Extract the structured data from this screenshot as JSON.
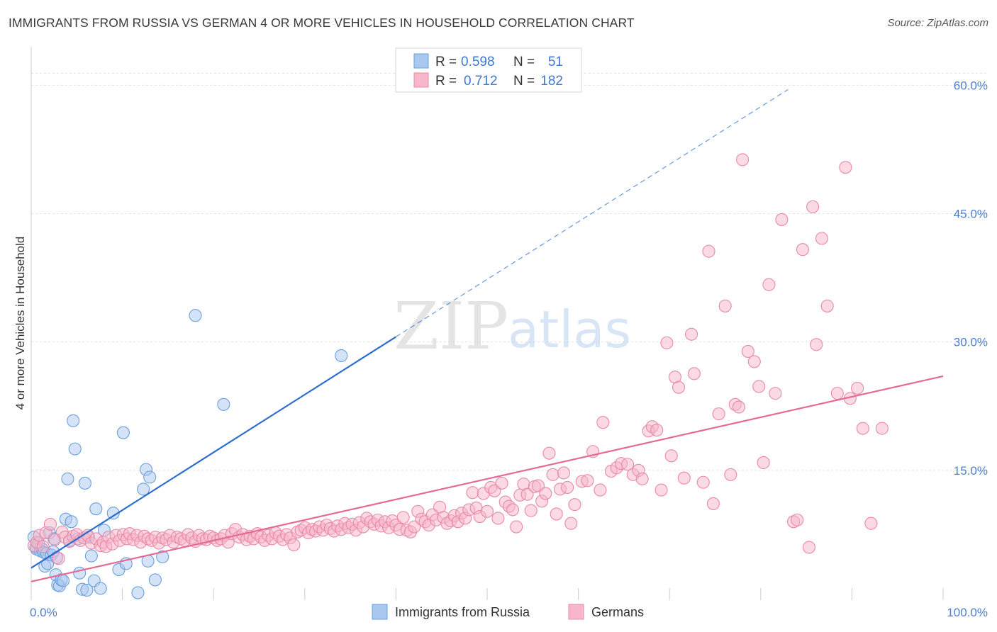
{
  "title": "IMMIGRANTS FROM RUSSIA VS GERMAN 4 OR MORE VEHICLES IN HOUSEHOLD CORRELATION CHART",
  "source": "Source: ZipAtlas.com",
  "watermark": {
    "zip": "ZIP",
    "atlas": "atlas"
  },
  "colors": {
    "russia_fill": "#a9c8f0",
    "russia_stroke": "#6a9fdc",
    "russia_line": "#2b6ccf",
    "german_fill": "#f7b6c9",
    "german_stroke": "#e889a8",
    "german_line": "#e56a95",
    "grid": "#e2e2e2",
    "tick_label": "#4a7fd1"
  },
  "legend": {
    "rows": [
      {
        "r_label": "R = ",
        "r_value": "0.598",
        "n_label": "N = ",
        "n_value": "51"
      },
      {
        "r_label": "R = ",
        "r_value": "0.712",
        "n_label": "N = ",
        "n_value": "182"
      }
    ]
  },
  "chart_data": {
    "type": "scatter",
    "xlabel": "",
    "ylabel": "4 or more Vehicles in Household",
    "xlim": [
      0,
      100
    ],
    "ylim": [
      0,
      64
    ],
    "x_tick_labels": [
      {
        "value": 0,
        "label": "0.0%"
      },
      {
        "value": 100,
        "label": "100.0%"
      }
    ],
    "y_ticks": [
      {
        "value": 15,
        "label": "15.0%"
      },
      {
        "value": 30,
        "label": "30.0%"
      },
      {
        "value": 45,
        "label": "45.0%"
      },
      {
        "value": 60,
        "label": "60.0%"
      }
    ],
    "grid": true,
    "legend_position": "top-center",
    "series": [
      {
        "name": "Immigrants from Russia",
        "r": 0.598,
        "n": 51,
        "trend": {
          "x0": 0,
          "y0": 3.6,
          "x1": 40,
          "y1": 30.6,
          "dashed_to_x": 83,
          "dashed_to_y": 59.5
        },
        "points": [
          [
            0.3,
            7.2
          ],
          [
            0.5,
            6.0
          ],
          [
            0.6,
            5.8
          ],
          [
            0.8,
            6.5
          ],
          [
            1.0,
            5.6
          ],
          [
            1.2,
            5.8
          ],
          [
            1.4,
            5.4
          ],
          [
            1.5,
            3.8
          ],
          [
            1.7,
            5.3
          ],
          [
            1.8,
            4.1
          ],
          [
            2.0,
            7.7
          ],
          [
            2.2,
            5.1
          ],
          [
            2.4,
            5.5
          ],
          [
            2.5,
            7.0
          ],
          [
            2.7,
            2.8
          ],
          [
            2.8,
            4.8
          ],
          [
            2.9,
            1.6
          ],
          [
            3.1,
            1.5
          ],
          [
            3.3,
            2.2
          ],
          [
            3.5,
            2.1
          ],
          [
            3.8,
            9.3
          ],
          [
            4.0,
            14.0
          ],
          [
            4.2,
            6.8
          ],
          [
            4.4,
            9.0
          ],
          [
            4.6,
            20.8
          ],
          [
            4.8,
            17.5
          ],
          [
            5.1,
            7.0
          ],
          [
            5.3,
            3.0
          ],
          [
            5.6,
            1.1
          ],
          [
            5.9,
            13.5
          ],
          [
            6.1,
            1.0
          ],
          [
            6.3,
            7.2
          ],
          [
            6.6,
            5.0
          ],
          [
            6.9,
            2.1
          ],
          [
            7.1,
            10.5
          ],
          [
            7.6,
            1.2
          ],
          [
            8.0,
            8.0
          ],
          [
            9.0,
            10.0
          ],
          [
            9.6,
            3.4
          ],
          [
            10.1,
            19.4
          ],
          [
            10.4,
            4.1
          ],
          [
            11.7,
            0.7
          ],
          [
            12.3,
            12.8
          ],
          [
            12.6,
            15.1
          ],
          [
            12.8,
            4.4
          ],
          [
            13.0,
            14.2
          ],
          [
            13.6,
            2.2
          ],
          [
            14.4,
            4.9
          ],
          [
            18.0,
            33.1
          ],
          [
            21.1,
            22.7
          ],
          [
            34.0,
            28.4
          ]
        ]
      },
      {
        "name": "Germans",
        "r": 0.712,
        "n": 182,
        "trend": {
          "x0": 0,
          "y0": 2.0,
          "x1": 100,
          "y1": 26.0
        },
        "points": [
          [
            0.3,
            6.2
          ],
          [
            0.6,
            6.6
          ],
          [
            0.9,
            7.4
          ],
          [
            1.3,
            6.1
          ],
          [
            1.6,
            7.7
          ],
          [
            2.1,
            8.7
          ],
          [
            2.6,
            6.9
          ],
          [
            3.0,
            4.7
          ],
          [
            3.4,
            7.8
          ],
          [
            3.7,
            7.2
          ],
          [
            4.2,
            6.7
          ],
          [
            4.6,
            7.3
          ],
          [
            5.0,
            7.5
          ],
          [
            5.4,
            6.8
          ],
          [
            5.8,
            7.1
          ],
          [
            6.2,
            7.4
          ],
          [
            6.6,
            6.5
          ],
          [
            7.1,
            7.0
          ],
          [
            7.6,
            6.2
          ],
          [
            7.9,
            6.6
          ],
          [
            8.2,
            6.1
          ],
          [
            8.5,
            7.2
          ],
          [
            8.9,
            6.4
          ],
          [
            9.3,
            7.4
          ],
          [
            9.7,
            6.8
          ],
          [
            10.1,
            7.5
          ],
          [
            10.5,
            7.0
          ],
          [
            10.8,
            7.6
          ],
          [
            11.2,
            6.9
          ],
          [
            11.6,
            7.4
          ],
          [
            12.0,
            6.6
          ],
          [
            12.4,
            7.3
          ],
          [
            12.8,
            7.0
          ],
          [
            13.2,
            6.8
          ],
          [
            13.6,
            7.2
          ],
          [
            14.0,
            6.5
          ],
          [
            14.4,
            7.1
          ],
          [
            14.8,
            6.9
          ],
          [
            15.2,
            7.4
          ],
          [
            15.6,
            6.6
          ],
          [
            16.0,
            7.2
          ],
          [
            16.4,
            7.0
          ],
          [
            16.8,
            6.8
          ],
          [
            17.2,
            7.5
          ],
          [
            17.6,
            7.1
          ],
          [
            18.0,
            6.7
          ],
          [
            18.4,
            7.4
          ],
          [
            18.8,
            7.0
          ],
          [
            19.2,
            6.9
          ],
          [
            19.6,
            7.3
          ],
          [
            20.0,
            7.1
          ],
          [
            20.4,
            6.8
          ],
          [
            20.8,
            7.0
          ],
          [
            21.2,
            7.4
          ],
          [
            21.6,
            6.6
          ],
          [
            22.0,
            7.6
          ],
          [
            22.4,
            8.1
          ],
          [
            22.8,
            7.2
          ],
          [
            23.2,
            7.5
          ],
          [
            23.6,
            6.9
          ],
          [
            24.0,
            7.3
          ],
          [
            24.4,
            7.0
          ],
          [
            24.8,
            7.6
          ],
          [
            25.2,
            7.2
          ],
          [
            25.6,
            6.8
          ],
          [
            26.0,
            7.4
          ],
          [
            26.4,
            7.0
          ],
          [
            26.8,
            7.7
          ],
          [
            27.2,
            7.3
          ],
          [
            27.6,
            6.9
          ],
          [
            28.0,
            7.5
          ],
          [
            28.4,
            7.1
          ],
          [
            28.8,
            6.3
          ],
          [
            29.2,
            7.8
          ],
          [
            29.6,
            8.0
          ],
          [
            30.0,
            8.3
          ],
          [
            30.4,
            7.7
          ],
          [
            30.8,
            8.1
          ],
          [
            31.2,
            7.9
          ],
          [
            31.6,
            8.4
          ],
          [
            32.0,
            8.0
          ],
          [
            32.4,
            8.6
          ],
          [
            32.8,
            8.2
          ],
          [
            33.2,
            7.9
          ],
          [
            33.6,
            8.5
          ],
          [
            34.0,
            8.1
          ],
          [
            34.4,
            8.8
          ],
          [
            34.8,
            8.3
          ],
          [
            35.2,
            8.7
          ],
          [
            35.6,
            8.0
          ],
          [
            36.0,
            8.9
          ],
          [
            36.4,
            8.4
          ],
          [
            36.8,
            9.4
          ],
          [
            37.2,
            9.0
          ],
          [
            37.6,
            8.7
          ],
          [
            38.0,
            9.2
          ],
          [
            38.4,
            8.5
          ],
          [
            38.8,
            9.0
          ],
          [
            39.2,
            8.3
          ],
          [
            39.6,
            9.1
          ],
          [
            40.0,
            8.6
          ],
          [
            40.4,
            8.1
          ],
          [
            40.8,
            9.5
          ],
          [
            41.2,
            8.0
          ],
          [
            41.6,
            7.8
          ],
          [
            42.0,
            8.4
          ],
          [
            42.4,
            10.2
          ],
          [
            42.8,
            9.3
          ],
          [
            43.2,
            9.0
          ],
          [
            43.6,
            8.6
          ],
          [
            44.0,
            9.8
          ],
          [
            44.4,
            9.2
          ],
          [
            44.8,
            10.7
          ],
          [
            45.2,
            9.5
          ],
          [
            45.6,
            8.8
          ],
          [
            46.0,
            9.1
          ],
          [
            46.4,
            9.7
          ],
          [
            46.8,
            9.0
          ],
          [
            47.2,
            10.0
          ],
          [
            47.6,
            9.4
          ],
          [
            48.0,
            10.4
          ],
          [
            48.4,
            12.4
          ],
          [
            48.8,
            10.6
          ],
          [
            49.2,
            9.6
          ],
          [
            49.6,
            12.3
          ],
          [
            50.0,
            10.2
          ],
          [
            50.4,
            13.0
          ],
          [
            50.8,
            12.6
          ],
          [
            51.2,
            9.4
          ],
          [
            51.6,
            13.5
          ],
          [
            52.0,
            11.3
          ],
          [
            52.4,
            10.8
          ],
          [
            52.8,
            10.4
          ],
          [
            53.2,
            8.4
          ],
          [
            53.6,
            12.1
          ],
          [
            54.0,
            13.4
          ],
          [
            54.4,
            12.2
          ],
          [
            54.8,
            10.3
          ],
          [
            55.2,
            13.1
          ],
          [
            55.6,
            13.2
          ],
          [
            56.0,
            11.4
          ],
          [
            56.4,
            12.3
          ],
          [
            56.8,
            17.0
          ],
          [
            57.2,
            14.5
          ],
          [
            57.6,
            9.9
          ],
          [
            58.0,
            12.8
          ],
          [
            58.4,
            14.7
          ],
          [
            58.8,
            13.0
          ],
          [
            59.2,
            8.8
          ],
          [
            59.6,
            11.0
          ],
          [
            60.4,
            13.7
          ],
          [
            61.0,
            13.8
          ],
          [
            61.6,
            17.2
          ],
          [
            62.4,
            12.7
          ],
          [
            62.7,
            20.6
          ],
          [
            63.6,
            14.9
          ],
          [
            64.2,
            15.3
          ],
          [
            64.7,
            15.8
          ],
          [
            65.4,
            15.7
          ],
          [
            66.0,
            14.5
          ],
          [
            66.6,
            15.0
          ],
          [
            67.0,
            14.0
          ],
          [
            67.7,
            19.6
          ],
          [
            68.1,
            20.1
          ],
          [
            68.6,
            19.7
          ],
          [
            69.1,
            12.7
          ],
          [
            69.7,
            29.9
          ],
          [
            70.2,
            16.7
          ],
          [
            70.6,
            25.9
          ],
          [
            71.0,
            24.7
          ],
          [
            71.6,
            14.1
          ],
          [
            72.4,
            30.9
          ],
          [
            72.7,
            26.3
          ],
          [
            73.7,
            13.6
          ],
          [
            74.3,
            40.6
          ],
          [
            74.8,
            11.1
          ],
          [
            75.4,
            21.6
          ],
          [
            76.1,
            34.2
          ],
          [
            76.7,
            14.5
          ],
          [
            77.2,
            22.7
          ],
          [
            77.6,
            22.4
          ],
          [
            78.0,
            51.3
          ],
          [
            78.6,
            28.9
          ],
          [
            79.3,
            27.7
          ],
          [
            79.8,
            24.8
          ],
          [
            80.3,
            15.9
          ],
          [
            80.9,
            36.7
          ],
          [
            81.6,
            24.0
          ],
          [
            82.3,
            44.3
          ],
          [
            83.6,
            9.0
          ],
          [
            84.0,
            9.2
          ],
          [
            84.6,
            40.8
          ],
          [
            85.3,
            6.0
          ],
          [
            85.7,
            45.8
          ],
          [
            86.1,
            29.7
          ],
          [
            86.7,
            42.1
          ],
          [
            87.3,
            34.2
          ],
          [
            88.4,
            24.0
          ],
          [
            89.3,
            50.4
          ],
          [
            89.8,
            23.4
          ],
          [
            90.6,
            24.6
          ],
          [
            91.2,
            19.9
          ],
          [
            92.1,
            8.8
          ],
          [
            93.3,
            19.9
          ]
        ]
      }
    ]
  }
}
